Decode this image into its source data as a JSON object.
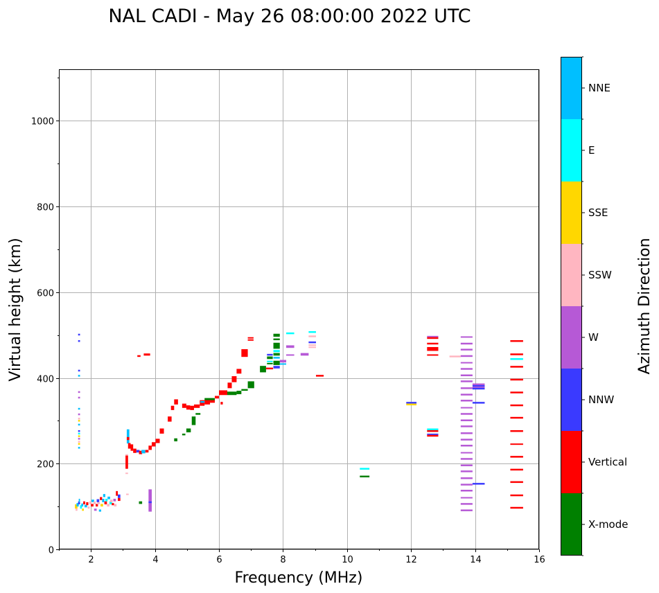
{
  "chart_data": {
    "type": "scatter",
    "title": "NAL CADI - May 26 08:00:00 2022 UTC",
    "xlabel": "Frequency (MHz)",
    "ylabel": "Virtual height (km)",
    "xlim": [
      1,
      16
    ],
    "ylim": [
      0,
      1120
    ],
    "xticks": [
      2,
      4,
      6,
      8,
      10,
      12,
      14,
      16
    ],
    "yticks": [
      0,
      200,
      400,
      600,
      800,
      1000
    ],
    "grid": true,
    "colorbar": {
      "label": "Azimuth Direction",
      "categories": [
        {
          "name": "X-mode",
          "color": "#008000"
        },
        {
          "name": "Vertical",
          "color": "#ff0000"
        },
        {
          "name": "NNW",
          "color": "#3a3aff"
        },
        {
          "name": "W",
          "color": "#b659d6"
        },
        {
          "name": "SSW",
          "color": "#ffb6c1"
        },
        {
          "name": "SSE",
          "color": "#ffd700"
        },
        {
          "name": "E",
          "color": "#00ffff"
        },
        {
          "name": "NNE",
          "color": "#00bfff"
        }
      ]
    },
    "mark_format": "[freq_start_MHz, freq_end_MHz, height_low_km, height_high_km, category_index]",
    "marks": [
      [
        1.6,
        1.66,
        499,
        503,
        2
      ],
      [
        1.6,
        1.66,
        484,
        488,
        2
      ],
      [
        1.6,
        1.66,
        415,
        419,
        2
      ],
      [
        1.6,
        1.66,
        403,
        407,
        7
      ],
      [
        1.6,
        1.66,
        365,
        369,
        3
      ],
      [
        1.6,
        1.66,
        352,
        356,
        3
      ],
      [
        1.6,
        1.66,
        326,
        330,
        7
      ],
      [
        1.6,
        1.66,
        313,
        317,
        3
      ],
      [
        1.6,
        1.66,
        303,
        307,
        4
      ],
      [
        1.6,
        1.66,
        298,
        302,
        5
      ],
      [
        1.6,
        1.66,
        289,
        293,
        7
      ],
      [
        1.6,
        1.66,
        274,
        278,
        2
      ],
      [
        1.6,
        1.66,
        268,
        272,
        6
      ],
      [
        1.6,
        1.66,
        262,
        266,
        5
      ],
      [
        1.6,
        1.66,
        256,
        260,
        3
      ],
      [
        1.6,
        1.66,
        249,
        253,
        4
      ],
      [
        1.6,
        1.66,
        244,
        248,
        5
      ],
      [
        1.6,
        1.66,
        235,
        239,
        7
      ],
      [
        1.5,
        1.58,
        95,
        105,
        5
      ],
      [
        1.52,
        1.58,
        90,
        95,
        4
      ],
      [
        1.55,
        1.62,
        100,
        108,
        7
      ],
      [
        1.6,
        1.66,
        105,
        112,
        2
      ],
      [
        1.62,
        1.66,
        110,
        118,
        7
      ],
      [
        1.66,
        1.72,
        95,
        103,
        6
      ],
      [
        1.7,
        1.76,
        100,
        107,
        7
      ],
      [
        1.72,
        1.78,
        90,
        95,
        5
      ],
      [
        1.76,
        1.82,
        105,
        112,
        1
      ],
      [
        1.8,
        1.88,
        98,
        104,
        7
      ],
      [
        1.85,
        1.92,
        103,
        110,
        1
      ],
      [
        1.9,
        1.96,
        95,
        100,
        4
      ],
      [
        1.95,
        2.02,
        105,
        112,
        4
      ],
      [
        2.0,
        2.08,
        100,
        106,
        1
      ],
      [
        2.02,
        2.1,
        110,
        116,
        7
      ],
      [
        2.08,
        2.15,
        105,
        112,
        4
      ],
      [
        2.1,
        2.18,
        90,
        95,
        3
      ],
      [
        2.15,
        2.22,
        100,
        106,
        1
      ],
      [
        2.18,
        2.26,
        110,
        117,
        2
      ],
      [
        2.2,
        2.28,
        105,
        110,
        4
      ],
      [
        2.25,
        2.32,
        88,
        93,
        7
      ],
      [
        2.28,
        2.35,
        115,
        122,
        1
      ],
      [
        2.3,
        2.38,
        100,
        106,
        5
      ],
      [
        2.35,
        2.42,
        110,
        118,
        7
      ],
      [
        2.38,
        2.45,
        122,
        129,
        7
      ],
      [
        2.42,
        2.5,
        105,
        112,
        1
      ],
      [
        2.45,
        2.52,
        112,
        118,
        6
      ],
      [
        2.5,
        2.58,
        100,
        106,
        4
      ],
      [
        2.52,
        2.6,
        117,
        123,
        7
      ],
      [
        2.58,
        2.66,
        105,
        112,
        6
      ],
      [
        2.6,
        2.68,
        110,
        116,
        4
      ],
      [
        2.65,
        2.72,
        103,
        108,
        1
      ],
      [
        2.7,
        2.78,
        112,
        118,
        3
      ],
      [
        2.72,
        2.8,
        100,
        106,
        4
      ],
      [
        2.78,
        2.84,
        125,
        136,
        1
      ],
      [
        2.84,
        2.92,
        113,
        120,
        1
      ],
      [
        2.84,
        2.92,
        120,
        128,
        2
      ],
      [
        3.1,
        3.18,
        128,
        130,
        4
      ],
      [
        3.08,
        3.16,
        188,
        219,
        1
      ],
      [
        3.08,
        3.16,
        219,
        222,
        4
      ],
      [
        3.08,
        3.16,
        176,
        179,
        4
      ],
      [
        3.12,
        3.2,
        247,
        280,
        7
      ],
      [
        3.12,
        3.2,
        255,
        262,
        1
      ],
      [
        3.16,
        3.24,
        235,
        248,
        1
      ],
      [
        3.24,
        3.32,
        230,
        245,
        1
      ],
      [
        3.32,
        3.42,
        225,
        235,
        1
      ],
      [
        3.42,
        3.52,
        226,
        232,
        2
      ],
      [
        3.5,
        3.6,
        222,
        230,
        1
      ],
      [
        3.58,
        3.7,
        224,
        232,
        7
      ],
      [
        3.7,
        3.8,
        226,
        232,
        1
      ],
      [
        3.8,
        3.9,
        232,
        242,
        1
      ],
      [
        3.9,
        4.02,
        240,
        250,
        1
      ],
      [
        4.02,
        4.15,
        248,
        258,
        1
      ],
      [
        4.15,
        4.28,
        270,
        282,
        1
      ],
      [
        4.4,
        4.52,
        298,
        310,
        1
      ],
      [
        4.5,
        4.6,
        325,
        335,
        1
      ],
      [
        4.6,
        4.72,
        338,
        350,
        1
      ],
      [
        4.85,
        4.98,
        330,
        340,
        1
      ],
      [
        4.98,
        5.1,
        326,
        336,
        1
      ],
      [
        5.1,
        5.22,
        325,
        335,
        1
      ],
      [
        5.22,
        5.4,
        330,
        338,
        1
      ],
      [
        5.4,
        5.55,
        335,
        348,
        1
      ],
      [
        5.55,
        5.72,
        338,
        349,
        1
      ],
      [
        5.72,
        5.87,
        342,
        352,
        1
      ],
      [
        5.87,
        6.0,
        352,
        358,
        1
      ],
      [
        6.0,
        6.26,
        360,
        371,
        1
      ],
      [
        6.05,
        6.12,
        338,
        344,
        1
      ],
      [
        6.27,
        6.4,
        376,
        389,
        1
      ],
      [
        6.4,
        6.55,
        390,
        404,
        1
      ],
      [
        6.55,
        6.7,
        410,
        421,
        1
      ],
      [
        6.7,
        6.9,
        449,
        467,
        1
      ],
      [
        6.9,
        7.08,
        492,
        495,
        1
      ],
      [
        6.9,
        7.08,
        487,
        490,
        1
      ],
      [
        7.47,
        7.69,
        420,
        424,
        1
      ],
      [
        9.03,
        9.27,
        403,
        407,
        1
      ],
      [
        3.45,
        3.55,
        449,
        453,
        1
      ],
      [
        3.65,
        3.85,
        452,
        457,
        1
      ],
      [
        3.8,
        3.9,
        88,
        140,
        3
      ],
      [
        3.8,
        3.9,
        108,
        112,
        2
      ],
      [
        3.5,
        3.6,
        106,
        112,
        0
      ],
      [
        4.6,
        4.7,
        252,
        259,
        0
      ],
      [
        4.85,
        4.95,
        266,
        270,
        0
      ],
      [
        4.98,
        5.12,
        273,
        282,
        0
      ],
      [
        5.15,
        5.27,
        290,
        310,
        0
      ],
      [
        5.27,
        5.42,
        314,
        318,
        0
      ],
      [
        5.42,
        5.55,
        342,
        346,
        7
      ],
      [
        5.55,
        5.87,
        348,
        353,
        0
      ],
      [
        6.26,
        6.55,
        360,
        368,
        0
      ],
      [
        6.55,
        6.7,
        362,
        370,
        0
      ],
      [
        6.7,
        6.9,
        370,
        374,
        0
      ],
      [
        6.9,
        7.1,
        376,
        392,
        0
      ],
      [
        7.28,
        7.47,
        413,
        428,
        0
      ],
      [
        7.7,
        7.9,
        496,
        503,
        0
      ],
      [
        7.7,
        7.9,
        488,
        492,
        0
      ],
      [
        7.7,
        7.9,
        468,
        482,
        0
      ],
      [
        7.7,
        7.9,
        460,
        465,
        6
      ],
      [
        7.7,
        7.9,
        452,
        458,
        0
      ],
      [
        7.7,
        7.9,
        445,
        449,
        7
      ],
      [
        7.7,
        7.9,
        430,
        440,
        0
      ],
      [
        7.5,
        7.68,
        452,
        456,
        2
      ],
      [
        7.5,
        7.68,
        444,
        450,
        0
      ],
      [
        7.5,
        7.68,
        437,
        440,
        6
      ],
      [
        7.5,
        7.68,
        432,
        435,
        0
      ],
      [
        7.7,
        7.9,
        422,
        428,
        2
      ],
      [
        7.9,
        8.1,
        436,
        442,
        3
      ],
      [
        7.9,
        8.1,
        431,
        434,
        7
      ],
      [
        8.1,
        8.35,
        502,
        506,
        6
      ],
      [
        8.1,
        8.35,
        470,
        476,
        3
      ],
      [
        8.1,
        8.35,
        453,
        455,
        3
      ],
      [
        8.8,
        9.03,
        505,
        509,
        6
      ],
      [
        8.8,
        9.03,
        495,
        499,
        4
      ],
      [
        8.8,
        9.03,
        481,
        485,
        2
      ],
      [
        8.8,
        9.03,
        475,
        478,
        4
      ],
      [
        8.8,
        9.03,
        470,
        473,
        4
      ],
      [
        8.55,
        8.8,
        452,
        458,
        3
      ],
      [
        10.4,
        10.7,
        186,
        190,
        6
      ],
      [
        10.4,
        10.7,
        168,
        172,
        0
      ],
      [
        11.85,
        12.17,
        340,
        344,
        2
      ],
      [
        11.85,
        12.17,
        336,
        340,
        5
      ],
      [
        12.5,
        12.85,
        495,
        498,
        3
      ],
      [
        12.5,
        12.85,
        491,
        495,
        1
      ],
      [
        12.5,
        12.85,
        478,
        482,
        1
      ],
      [
        12.5,
        12.85,
        463,
        472,
        1
      ],
      [
        12.5,
        12.85,
        453,
        455,
        1
      ],
      [
        12.5,
        12.85,
        278,
        282,
        6
      ],
      [
        12.5,
        12.85,
        274,
        278,
        1
      ],
      [
        12.5,
        12.85,
        267,
        270,
        2
      ],
      [
        12.5,
        12.85,
        263,
        267,
        1
      ],
      [
        13.2,
        13.55,
        448,
        452,
        4
      ],
      [
        13.55,
        13.92,
        494,
        497,
        3
      ],
      [
        13.55,
        13.92,
        478,
        482,
        3
      ],
      [
        13.55,
        13.92,
        464,
        468,
        3
      ],
      [
        13.55,
        13.92,
        449,
        453,
        3
      ],
      [
        13.55,
        13.92,
        435,
        437,
        3
      ],
      [
        13.55,
        13.92,
        419,
        423,
        3
      ],
      [
        13.55,
        13.92,
        404,
        408,
        3
      ],
      [
        13.55,
        13.92,
        390,
        394,
        3
      ],
      [
        13.55,
        13.92,
        374,
        378,
        3
      ],
      [
        13.55,
        13.92,
        359,
        363,
        3
      ],
      [
        13.55,
        13.92,
        345,
        349,
        3
      ],
      [
        13.55,
        13.92,
        330,
        332,
        3
      ],
      [
        13.55,
        13.92,
        314,
        318,
        3
      ],
      [
        13.55,
        13.92,
        299,
        303,
        3
      ],
      [
        13.55,
        13.92,
        285,
        289,
        3
      ],
      [
        13.55,
        13.92,
        269,
        273,
        3
      ],
      [
        13.55,
        13.92,
        254,
        258,
        3
      ],
      [
        13.55,
        13.92,
        240,
        244,
        3
      ],
      [
        13.55,
        13.92,
        225,
        227,
        3
      ],
      [
        13.55,
        13.92,
        209,
        213,
        3
      ],
      [
        13.55,
        13.92,
        194,
        198,
        3
      ],
      [
        13.55,
        13.92,
        180,
        184,
        3
      ],
      [
        13.55,
        13.92,
        164,
        168,
        3
      ],
      [
        13.55,
        13.92,
        149,
        153,
        3
      ],
      [
        13.55,
        13.92,
        135,
        139,
        3
      ],
      [
        13.55,
        13.92,
        120,
        122,
        3
      ],
      [
        13.55,
        13.92,
        104,
        108,
        3
      ],
      [
        13.55,
        13.92,
        89,
        93,
        3
      ],
      [
        13.92,
        14.3,
        383,
        387,
        3
      ],
      [
        13.92,
        14.3,
        380,
        383,
        2
      ],
      [
        13.92,
        14.3,
        377,
        380,
        3
      ],
      [
        13.92,
        14.3,
        373,
        377,
        2
      ],
      [
        13.92,
        14.3,
        340,
        344,
        2
      ],
      [
        13.92,
        14.3,
        151,
        155,
        2
      ],
      [
        15.1,
        15.5,
        484,
        488,
        1
      ],
      [
        15.1,
        15.5,
        453,
        457,
        1
      ],
      [
        15.1,
        15.5,
        442,
        446,
        6
      ],
      [
        15.1,
        15.5,
        424,
        428,
        1
      ],
      [
        15.1,
        15.5,
        394,
        398,
        1
      ],
      [
        15.1,
        15.5,
        364,
        368,
        1
      ],
      [
        15.1,
        15.5,
        334,
        338,
        1
      ],
      [
        15.1,
        15.5,
        305,
        309,
        1
      ],
      [
        15.1,
        15.5,
        274,
        278,
        1
      ],
      [
        15.1,
        15.5,
        245,
        247,
        1
      ],
      [
        15.1,
        15.5,
        214,
        218,
        1
      ],
      [
        15.1,
        15.5,
        184,
        188,
        1
      ],
      [
        15.1,
        15.5,
        155,
        159,
        1
      ],
      [
        15.1,
        15.5,
        124,
        128,
        1
      ],
      [
        15.1,
        15.5,
        95,
        99,
        1
      ]
    ]
  }
}
